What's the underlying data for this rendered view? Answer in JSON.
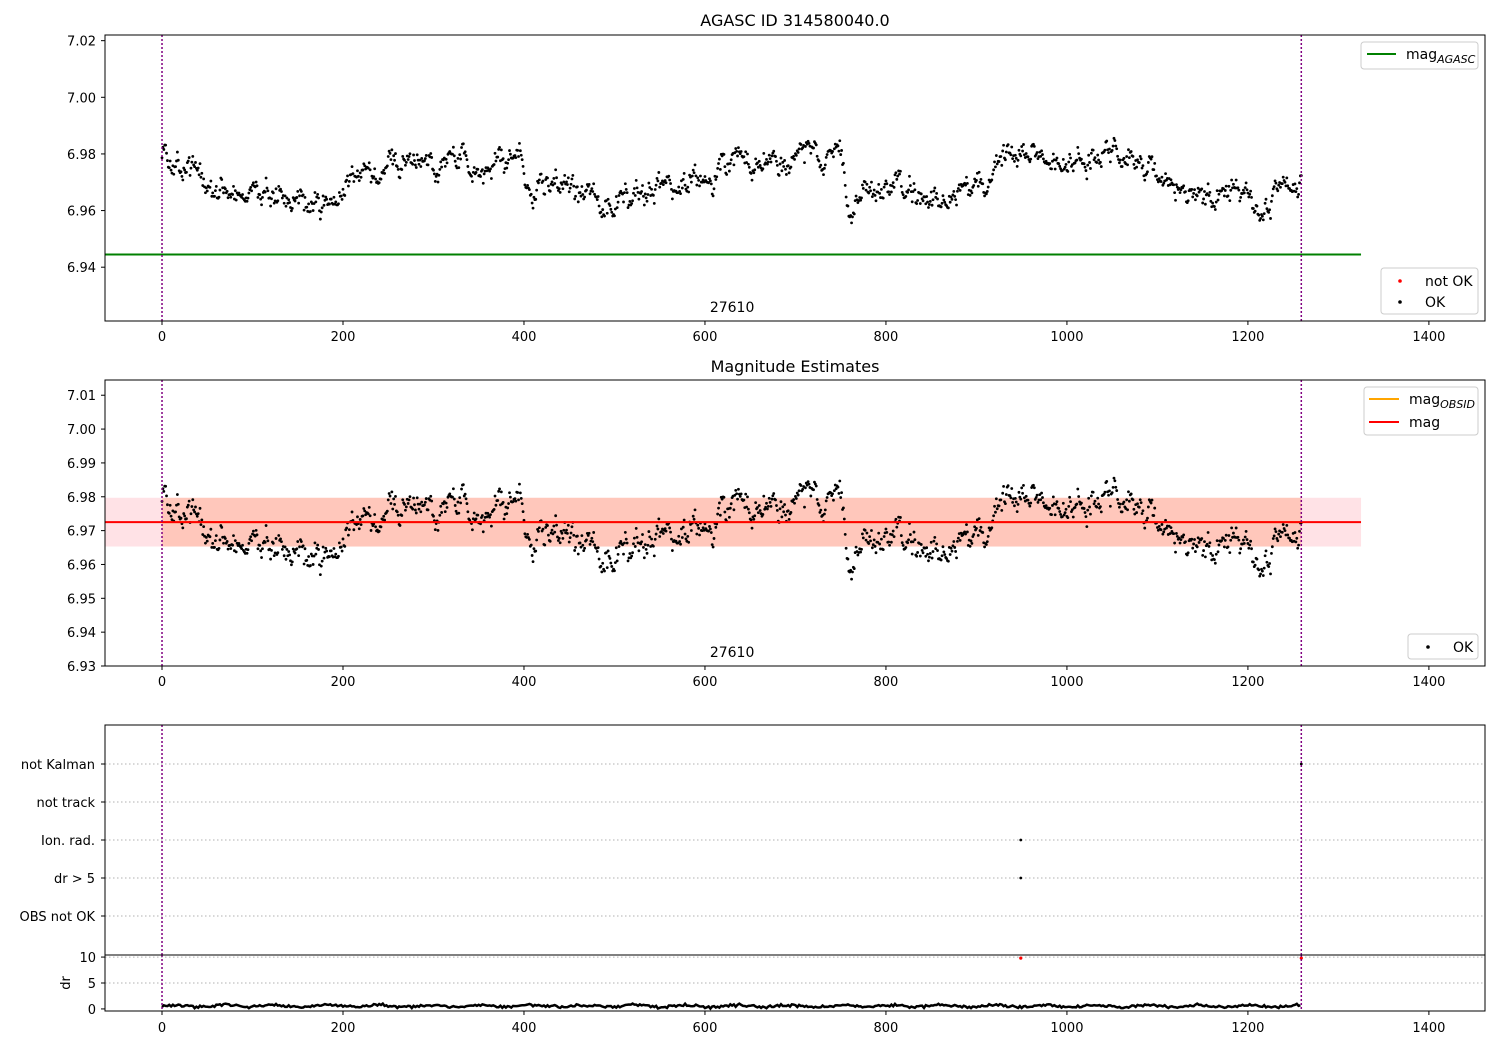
{
  "chart_data": [
    {
      "type": "scatter",
      "title": "AGASC ID 314580040.0",
      "xlim": [
        -63,
        1462
      ],
      "ylim": [
        6.921,
        7.022
      ],
      "xticks": [
        0,
        200,
        400,
        600,
        800,
        1000,
        1200,
        1400
      ],
      "yticks": [
        6.94,
        6.96,
        6.98,
        7.0,
        7.02
      ],
      "ytick_labels": [
        "6.94",
        "6.96",
        "6.98",
        "7.00",
        "7.02"
      ],
      "obsid_boundaries": [
        0,
        1259
      ],
      "obsid_annotation": {
        "text": "27610",
        "x": 630
      },
      "mag_agasc": {
        "value": 6.9445,
        "x_range": [
          -63,
          1325
        ],
        "color": "#008000"
      },
      "points_seed": 1,
      "points_n": 1260,
      "colors": {
        "ok": "#000000",
        "not_ok": "#ff0000",
        "boundary": "#800080"
      },
      "legend_line": {
        "label_base": "mag",
        "label_sub": "AGASC",
        "color": "#008000"
      },
      "legend_points": [
        {
          "label": "not OK",
          "color": "#ff0000"
        },
        {
          "label": "OK",
          "color": "#000000"
        }
      ]
    },
    {
      "type": "scatter",
      "title": "Magnitude Estimates",
      "xlim": [
        -63,
        1462
      ],
      "ylim": [
        6.93,
        7.0145
      ],
      "xticks": [
        0,
        200,
        400,
        600,
        800,
        1000,
        1200,
        1400
      ],
      "yticks": [
        6.93,
        6.94,
        6.95,
        6.96,
        6.97,
        6.98,
        6.99,
        7.0,
        7.01
      ],
      "ytick_labels": [
        "6.93",
        "6.94",
        "6.95",
        "6.96",
        "6.97",
        "6.98",
        "6.99",
        "7.00",
        "7.01"
      ],
      "obsid_boundaries": [
        0,
        1259
      ],
      "obsid_annotation": {
        "text": "27610",
        "x": 630
      },
      "mag": {
        "value": 6.9725,
        "band": [
          6.9653,
          6.9797
        ],
        "x_range": [
          -63,
          1325
        ],
        "color": "#ff0000",
        "band_color": "#ffb6c1"
      },
      "mag_obsid": {
        "value": 6.9725,
        "band": [
          6.9653,
          6.9797
        ],
        "x_range": [
          0,
          1259
        ],
        "color": "#ffa500",
        "band_color": "#ffa07a"
      },
      "points_seed": 1,
      "points_n": 1260,
      "legend_lines": [
        {
          "label_base": "mag",
          "label_sub": "OBSID",
          "color": "#ffa500"
        },
        {
          "label_base": "mag",
          "label_sub": "",
          "color": "#ff0000"
        }
      ],
      "legend_points": [
        {
          "label": "OK",
          "color": "#000000"
        }
      ]
    },
    {
      "type": "scatter",
      "title": "",
      "xlim": [
        -63,
        1462
      ],
      "flags": [
        "not Kalman",
        "not track",
        "Ion. rad.",
        "dr > 5",
        "OBS not OK"
      ],
      "flag_points": [
        {
          "flag": "not Kalman",
          "x": 1259
        },
        {
          "flag": "Ion. rad.",
          "x": 949
        },
        {
          "flag": "dr > 5",
          "x": 949
        }
      ]
    },
    {
      "type": "line",
      "ylabel": "dr",
      "xlim": [
        -63,
        1462
      ],
      "ylim": [
        -0.4,
        10.4
      ],
      "xticks": [
        0,
        200,
        400,
        600,
        800,
        1000,
        1200,
        1400
      ],
      "yticks": [
        0,
        5,
        10
      ],
      "ytick_labels": [
        "0",
        "5",
        "10"
      ],
      "dr_outliers": [
        {
          "x": 949,
          "y": 9.8
        },
        {
          "x": 1259,
          "y": 9.8
        }
      ]
    }
  ]
}
